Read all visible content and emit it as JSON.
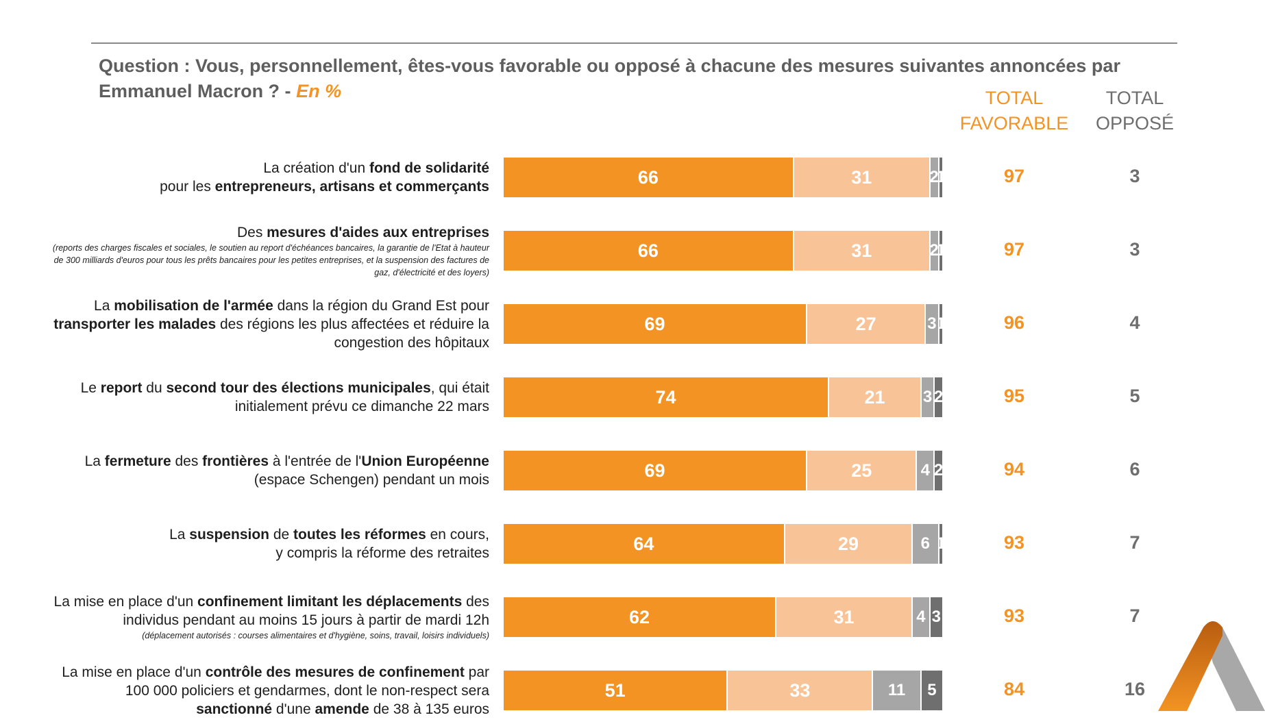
{
  "question": {
    "text": "Question : Vous, personnellement, êtes-vous favorable ou opposé à chacune des mesures suivantes annoncées par Emmanuel Macron ? - ",
    "unit": "En  %"
  },
  "headers": {
    "favorable": "TOTAL FAVORABLE",
    "oppose": "TOTAL OPPOSÉ"
  },
  "colors": {
    "tout_a_fait_favorable": "#f39323",
    "plutot_favorable": "#f8c497",
    "plutot_oppose": "#a6a6a6",
    "tout_a_fait_oppose": "#6f6f6f"
  },
  "chart_data": {
    "type": "bar",
    "orientation": "horizontal",
    "stacked": true,
    "categories": [
      "La création d'un fond de solidarité pour les entrepreneurs, artisans et commerçants",
      "Des mesures d'aides aux entreprises",
      "La mobilisation de l'armée dans la région du Grand Est pour transporter les malades des régions les plus affectées et réduire la congestion des hôpitaux",
      "Le report du second tour des élections municipales, qui était initialement prévu ce dimanche 22 mars",
      "La fermeture des frontières à l'entrée de l'Union Européenne (espace Schengen) pendant un mois",
      "La suspension de toutes les réformes en cours, y compris la réforme des retraites",
      "La mise en place d'un confinement limitant les déplacements des individus pendant au moins 15 jours à partir de mardi 12h",
      "La mise en place d'un contrôle des mesures de confinement par 100 000 policiers et gendarmes, dont le non-respect sera sanctionné d'une amende de 38 à 135 euros"
    ],
    "series": [
      {
        "values": [
          66,
          66,
          69,
          74,
          69,
          64,
          62,
          51
        ]
      },
      {
        "values": [
          31,
          31,
          27,
          21,
          25,
          29,
          31,
          33
        ]
      },
      {
        "values": [
          2,
          2,
          3,
          3,
          4,
          6,
          4,
          11
        ]
      },
      {
        "values": [
          1,
          1,
          1,
          2,
          2,
          1,
          3,
          5
        ]
      }
    ],
    "total_favorable": [
      97,
      97,
      96,
      95,
      94,
      93,
      93,
      84
    ],
    "total_oppose": [
      3,
      3,
      4,
      5,
      6,
      7,
      7,
      16
    ],
    "xlim": [
      0,
      100
    ],
    "legend": "none"
  },
  "rows": [
    {
      "segs": [
        {
          "t": "La création d'un ",
          "b": false
        },
        {
          "t": "fond de solidarité",
          "b": true
        },
        {
          "t": "\n",
          "b": false
        },
        {
          "t": "pour les ",
          "b": false
        },
        {
          "t": "entrepreneurs, artisans et commerçants",
          "b": true
        }
      ],
      "note": ""
    },
    {
      "segs": [
        {
          "t": "Des ",
          "b": false
        },
        {
          "t": "mesures d'aides aux entreprises",
          "b": true
        }
      ],
      "note": "(reports des charges fiscales et sociales, le soutien au report d'échéances bancaires, la garantie de l'Etat à hauteur de 300 milliards d'euros pour tous les prêts bancaires pour les petites entreprises, et la suspension des factures de gaz, d'électricité et des loyers)"
    },
    {
      "segs": [
        {
          "t": "La ",
          "b": false
        },
        {
          "t": "mobilisation de l'armée",
          "b": true
        },
        {
          "t": " dans la région du Grand Est pour ",
          "b": false
        },
        {
          "t": "transporter les malades",
          "b": true
        },
        {
          "t": " des régions les plus affectées et réduire la congestion des hôpitaux",
          "b": false
        }
      ],
      "note": ""
    },
    {
      "segs": [
        {
          "t": "Le ",
          "b": false
        },
        {
          "t": "report",
          "b": true
        },
        {
          "t": " du ",
          "b": false
        },
        {
          "t": "second tour des élections municipales",
          "b": true
        },
        {
          "t": ", qui était initialement prévu ce dimanche 22 mars",
          "b": false
        }
      ],
      "note": ""
    },
    {
      "segs": [
        {
          "t": "La ",
          "b": false
        },
        {
          "t": "fermeture",
          "b": true
        },
        {
          "t": " des ",
          "b": false
        },
        {
          "t": "frontières",
          "b": true
        },
        {
          "t": " à l'entrée de l'",
          "b": false
        },
        {
          "t": "Union Européenne",
          "b": true
        },
        {
          "t": " (espace Schengen) pendant un mois",
          "b": false
        }
      ],
      "note": ""
    },
    {
      "segs": [
        {
          "t": "La ",
          "b": false
        },
        {
          "t": "suspension",
          "b": true
        },
        {
          "t": " de ",
          "b": false
        },
        {
          "t": "toutes les réformes",
          "b": true
        },
        {
          "t": " en cours,\ny compris la réforme des retraites",
          "b": false
        }
      ],
      "note": ""
    },
    {
      "segs": [
        {
          "t": "La mise en place d'un ",
          "b": false
        },
        {
          "t": "confinement limitant les déplacements",
          "b": true
        },
        {
          "t": " des individus pendant au moins 15 jours à partir de mardi 12h",
          "b": false
        }
      ],
      "note": "(déplacement autorisés : courses alimentaires et d'hygiène, soins, travail, loisirs individuels)"
    },
    {
      "segs": [
        {
          "t": "La mise en place d'un ",
          "b": false
        },
        {
          "t": "contrôle des mesures de confinement",
          "b": true
        },
        {
          "t": " par 100 000 policiers et gendarmes, dont le non-respect sera ",
          "b": false
        },
        {
          "t": "sanctionné",
          "b": true
        },
        {
          "t": " d'une ",
          "b": false
        },
        {
          "t": "amende",
          "b": true
        },
        {
          "t": " de 38 à 135 euros",
          "b": false
        }
      ],
      "note": ""
    }
  ]
}
